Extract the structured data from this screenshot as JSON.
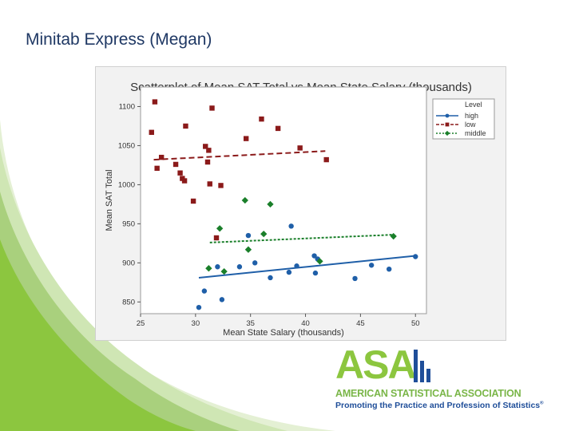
{
  "slide": {
    "title": "Minitab Express (Megan)"
  },
  "logo": {
    "letters": "ASA",
    "line1": "AMERICAN STATISTICAL ASSOCIATION",
    "line2": "Promoting the Practice and Profession of Statistics",
    "trademark": "®",
    "green": "#8cc63f",
    "blue": "#1f4e99"
  },
  "chart_data": {
    "type": "scatter",
    "title": "Scatterplot of Mean SAT Total vs Mean State Salary (thousands)",
    "xlabel": "Mean State Salary (thousands)",
    "ylabel": "Mean SAT Total",
    "xlim": [
      25,
      51
    ],
    "ylim": [
      835,
      1125
    ],
    "xticks": [
      25,
      30,
      35,
      40,
      45,
      50
    ],
    "yticks": [
      850,
      900,
      950,
      1000,
      1050,
      1100
    ],
    "grid": false,
    "legend": {
      "title": "Level",
      "placement": "top-right"
    },
    "series": [
      {
        "name": "high",
        "color": "#1f5fa8",
        "marker": "circle",
        "line_style": "solid",
        "fit": {
          "x": [
            30.3,
            50
          ],
          "y": [
            881,
            909
          ]
        },
        "points": [
          {
            "x": 30.3,
            "y": 843
          },
          {
            "x": 30.8,
            "y": 864
          },
          {
            "x": 32.0,
            "y": 895
          },
          {
            "x": 32.4,
            "y": 853
          },
          {
            "x": 34.0,
            "y": 895
          },
          {
            "x": 34.8,
            "y": 935
          },
          {
            "x": 35.4,
            "y": 900
          },
          {
            "x": 36.8,
            "y": 881
          },
          {
            "x": 38.5,
            "y": 888
          },
          {
            "x": 38.7,
            "y": 947
          },
          {
            "x": 39.2,
            "y": 896
          },
          {
            "x": 40.8,
            "y": 909
          },
          {
            "x": 40.9,
            "y": 887
          },
          {
            "x": 41.1,
            "y": 905
          },
          {
            "x": 44.5,
            "y": 880
          },
          {
            "x": 46.0,
            "y": 897
          },
          {
            "x": 47.6,
            "y": 892
          },
          {
            "x": 50.0,
            "y": 908
          }
        ]
      },
      {
        "name": "low",
        "color": "#8b1a1a",
        "marker": "square",
        "line_style": "dashed",
        "fit": {
          "x": [
            26.2,
            41.8
          ],
          "y": [
            1032,
            1043
          ]
        },
        "points": [
          {
            "x": 26.0,
            "y": 1067
          },
          {
            "x": 26.3,
            "y": 1106
          },
          {
            "x": 26.5,
            "y": 1021
          },
          {
            "x": 26.9,
            "y": 1035
          },
          {
            "x": 28.2,
            "y": 1026
          },
          {
            "x": 28.6,
            "y": 1015
          },
          {
            "x": 28.8,
            "y": 1008
          },
          {
            "x": 29.0,
            "y": 1005
          },
          {
            "x": 29.1,
            "y": 1075
          },
          {
            "x": 29.8,
            "y": 979
          },
          {
            "x": 30.9,
            "y": 1049
          },
          {
            "x": 31.1,
            "y": 1029
          },
          {
            "x": 31.2,
            "y": 1044
          },
          {
            "x": 31.3,
            "y": 1001
          },
          {
            "x": 31.5,
            "y": 1098
          },
          {
            "x": 31.9,
            "y": 932
          },
          {
            "x": 32.3,
            "y": 999
          },
          {
            "x": 34.6,
            "y": 1059
          },
          {
            "x": 36.0,
            "y": 1084
          },
          {
            "x": 37.5,
            "y": 1072
          },
          {
            "x": 39.5,
            "y": 1047
          },
          {
            "x": 41.9,
            "y": 1032
          }
        ]
      },
      {
        "name": "middle",
        "color": "#1a7f2a",
        "marker": "diamond",
        "line_style": "dotted",
        "fit": {
          "x": [
            31.3,
            48
          ],
          "y": [
            926,
            936
          ]
        },
        "points": [
          {
            "x": 31.2,
            "y": 893
          },
          {
            "x": 32.2,
            "y": 944
          },
          {
            "x": 32.6,
            "y": 889
          },
          {
            "x": 34.5,
            "y": 980
          },
          {
            "x": 34.8,
            "y": 917
          },
          {
            "x": 36.2,
            "y": 937
          },
          {
            "x": 36.8,
            "y": 975
          },
          {
            "x": 41.3,
            "y": 902
          },
          {
            "x": 48.0,
            "y": 934
          }
        ]
      }
    ]
  }
}
